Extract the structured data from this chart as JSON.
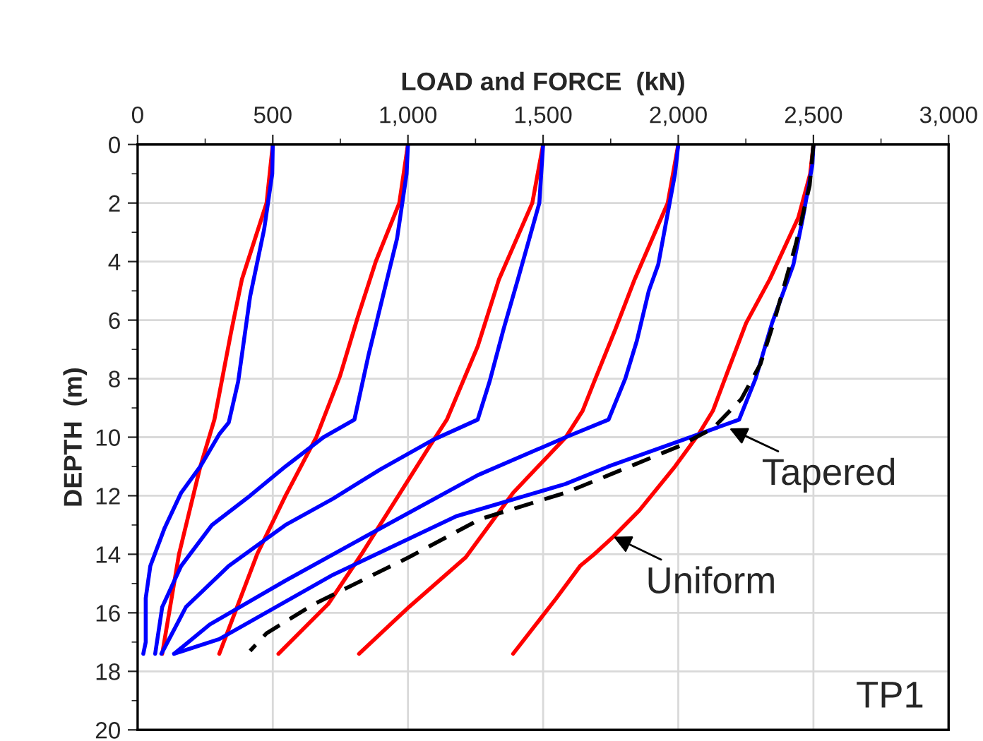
{
  "chart_data": {
    "type": "line",
    "xlabel": "LOAD and FORCE  (kN)",
    "ylabel": "DEPTH  (m)",
    "xlim": [
      0,
      3000
    ],
    "ylim": [
      20,
      0
    ],
    "xticks": [
      0,
      {
        "value": 250,
        "label": null
      },
      500,
      {
        "value": 750,
        "label": null
      },
      {
        "value": 1000,
        "label": "1,000"
      },
      {
        "value": 1250,
        "label": null
      },
      {
        "value": 1500,
        "label": "1,500"
      },
      {
        "value": 1750,
        "label": null
      },
      {
        "value": 2000,
        "label": "2,000"
      },
      {
        "value": 2250,
        "label": null
      },
      {
        "value": 2500,
        "label": "2,500"
      },
      {
        "value": 2750,
        "label": null
      },
      {
        "value": 3000,
        "label": "3,000"
      }
    ],
    "yticks": [
      0,
      {
        "value": 1,
        "label": null
      },
      2,
      {
        "value": 3,
        "label": null
      },
      4,
      {
        "value": 5,
        "label": null
      },
      6,
      {
        "value": 7,
        "label": null
      },
      8,
      {
        "value": 9,
        "label": null
      },
      10,
      {
        "value": 11,
        "label": null
      },
      12,
      {
        "value": 13,
        "label": null
      },
      14,
      {
        "value": 15,
        "label": null
      },
      16,
      {
        "value": 17,
        "label": null
      },
      18,
      {
        "value": 19,
        "label": null
      },
      20
    ],
    "grid": true,
    "legend": false,
    "line_style": "solid",
    "series": [
      {
        "color": "#ff0000",
        "x": [
          500,
          477,
          386,
          346,
          284,
          232,
          153,
          91
        ],
        "values": [
          0,
          2,
          4.6,
          6.4,
          9.4,
          11,
          14,
          17.4
        ]
      },
      {
        "color": "#0000ff",
        "x": [
          500,
          498,
          468,
          416,
          372,
          337,
          302,
          232,
          161,
          100,
          47,
          30,
          30,
          21
        ],
        "values": [
          0,
          1,
          2.9,
          5.2,
          8.1,
          9.5,
          9.9,
          11,
          11.9,
          13.1,
          14.4,
          15.5,
          17,
          17.4
        ]
      },
      {
        "color": "#ff0000",
        "x": [
          1000,
          968,
          881,
          811,
          749,
          661,
          547,
          442,
          302
        ],
        "values": [
          0,
          2,
          4,
          6,
          7.9,
          10,
          12,
          14,
          17.4
        ]
      },
      {
        "color": "#0000ff",
        "x": [
          1000,
          995,
          960,
          907,
          854,
          802,
          688,
          547,
          416,
          275,
          161,
          91,
          65
        ],
        "values": [
          0,
          1,
          3.2,
          5.2,
          7.2,
          9.4,
          10,
          11,
          12,
          13,
          14.4,
          15.8,
          17.4
        ]
      },
      {
        "color": "#ff0000",
        "x": [
          1500,
          1460,
          1337,
          1258,
          1144,
          1074,
          951,
          828,
          705,
          521
        ],
        "values": [
          0,
          2,
          4.6,
          6.9,
          9.4,
          10.4,
          12.2,
          14,
          15.7,
          17.4
        ]
      },
      {
        "color": "#0000ff",
        "x": [
          1500,
          1486,
          1407,
          1354,
          1302,
          1258,
          1091,
          898,
          723,
          547,
          337,
          179,
          88
        ],
        "values": [
          0,
          2,
          4.6,
          6.3,
          8.1,
          9.4,
          10.1,
          11.1,
          12.1,
          13,
          14.4,
          15.8,
          17.4
        ]
      },
      {
        "color": "#ff0000",
        "x": [
          2000,
          1961,
          1839,
          1768,
          1689,
          1646,
          1584,
          1389,
          1214,
          1004,
          819
        ],
        "values": [
          0,
          2,
          4.6,
          6.3,
          8.1,
          9.1,
          10,
          11.9,
          14.1,
          15.8,
          17.4
        ]
      },
      {
        "color": "#0000ff",
        "x": [
          2000,
          1988,
          1926,
          1891,
          1847,
          1804,
          1742,
          1584,
          1258,
          881,
          547,
          267,
          135
        ],
        "values": [
          0,
          1,
          4.1,
          5,
          6.7,
          8,
          9.4,
          10,
          11.3,
          13.2,
          14.9,
          16.4,
          17.4
        ]
      },
      {
        "color": "#ff0000",
        "x": [
          2500,
          2488,
          2444,
          2339,
          2251,
          2181,
          2128,
          2075,
          1988,
          1856,
          1760,
          1689,
          1637,
          1549,
          1389
        ],
        "values": [
          0,
          1,
          2.5,
          4.6,
          6.1,
          7.8,
          9.1,
          9.9,
          11,
          12.5,
          13.4,
          14,
          14.4,
          15.5,
          17.4
        ]
      },
      {
        "color": "#0000ff",
        "x": [
          2500,
          2496,
          2461,
          2426,
          2347,
          2286,
          2225,
          2075,
          1742,
          1582,
          1179,
          723,
          302,
          135
        ],
        "values": [
          0,
          0.7,
          2.5,
          4.1,
          6.1,
          8,
          9.4,
          9.9,
          11,
          11.6,
          12.7,
          14.7,
          16.9,
          17.4
        ]
      },
      {
        "color": "#000000",
        "line_style": "dashed",
        "x": [
          2500,
          2486,
          2435,
          2356,
          2304,
          2233,
          2128,
          2005,
          1742,
          1582,
          1267,
          1004,
          653,
          477,
          416
        ],
        "values": [
          0,
          1.4,
          3.4,
          6,
          7.5,
          8.7,
          9.7,
          10.3,
          11.3,
          11.9,
          12.8,
          14.1,
          15.7,
          16.7,
          17.3
        ]
      }
    ],
    "annotations": [
      {
        "text": "Tapered",
        "x": 2189,
        "y": 9.7
      },
      {
        "text": "Uniform",
        "x": 1760,
        "y": 13.4
      },
      "TP1"
    ]
  }
}
